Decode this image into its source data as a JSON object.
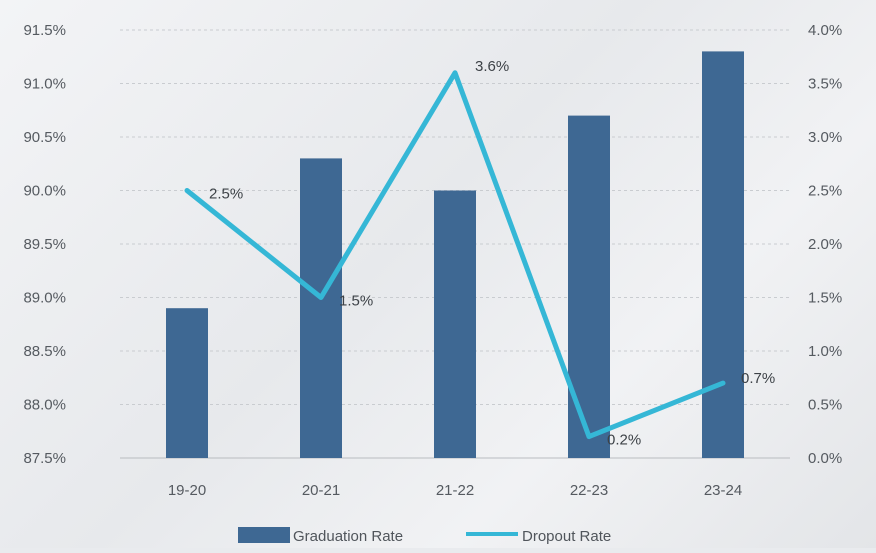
{
  "chart_data": {
    "type": "bar",
    "categories": [
      "19-20",
      "20-21",
      "21-22",
      "22-23",
      "23-24"
    ],
    "series": [
      {
        "name": "Graduation Rate",
        "type": "bar",
        "axis": "left",
        "values": [
          88.9,
          90.3,
          90.0,
          90.7,
          91.3
        ],
        "color": "#3e6893"
      },
      {
        "name": "Dropout Rate",
        "type": "line",
        "axis": "right",
        "values": [
          2.5,
          1.5,
          3.6,
          0.2,
          0.7
        ],
        "labels": [
          "2.5%",
          "1.5%",
          "3.6%",
          "0.2%",
          "0.7%"
        ],
        "color": "#35b7d6"
      }
    ],
    "y_left": {
      "min": 87.5,
      "max": 91.5,
      "ticks": [
        "87.5%",
        "88.0%",
        "88.5%",
        "89.0%",
        "89.5%",
        "90.0%",
        "90.5%",
        "91.0%",
        "91.5%"
      ]
    },
    "y_right": {
      "min": 0.0,
      "max": 4.0,
      "ticks": [
        "0.0%",
        "0.5%",
        "1.0%",
        "1.5%",
        "2.0%",
        "2.5%",
        "3.0%",
        "3.5%",
        "4.0%"
      ]
    },
    "title": "",
    "xlabel": "",
    "grid": true,
    "legend_position": "bottom"
  }
}
